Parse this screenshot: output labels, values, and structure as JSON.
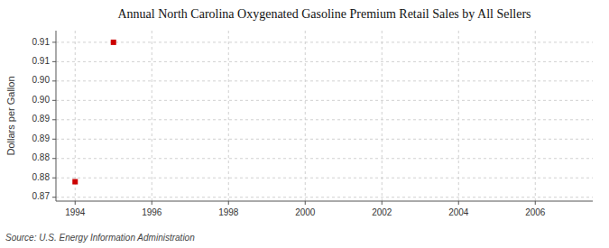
{
  "chart_data": {
    "type": "scatter",
    "title": "Annual North Carolina Oxygenated Gasoline Premium Retail Sales by All Sellers",
    "y_label": "Dollars per Gallon",
    "source": "Source: U.S. Energy Information Administration",
    "x": [
      1994,
      1995
    ],
    "values": [
      0.874,
      0.91
    ],
    "color": "#cc0000",
    "marker": "square",
    "xlim": [
      1993.5,
      2007.5
    ],
    "ylim": [
      0.869,
      0.913
    ],
    "xticks": [
      1994,
      1996,
      1998,
      2000,
      2002,
      2004,
      2006
    ],
    "yticks": [
      0.87,
      {
        "value": 0.875,
        "label": "0.88"
      },
      0.88,
      {
        "value": 0.885,
        "label": "0.89"
      },
      0.89,
      {
        "value": 0.895,
        "label": "0.90"
      },
      {
        "value": 0.9,
        "label": "0.90"
      },
      {
        "value": 0.905,
        "label": "0.91"
      },
      0.91
    ],
    "grid": true
  }
}
